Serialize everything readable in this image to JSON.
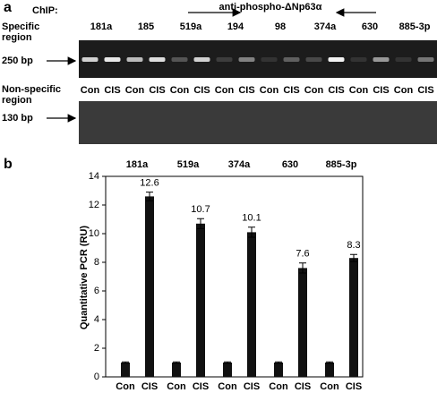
{
  "panel_a": {
    "panel_label": "a",
    "chip_label": "ChIP:",
    "antibody": "anti-phospho-ΔNp63α",
    "specific_label": "Specific region",
    "specific_size": "250 bp",
    "nonspecific_label": "Non-specific region",
    "nonspecific_size": "130 bp",
    "genes": [
      "181a",
      "185",
      "519a",
      "194",
      "98",
      "374a",
      "630",
      "885-3p"
    ],
    "lanes": [
      "Con",
      "CIS",
      "Con",
      "CIS",
      "Con",
      "CIS",
      "Con",
      "CIS",
      "Con",
      "CIS",
      "Con",
      "CIS",
      "Con",
      "CIS",
      "Con",
      "CIS"
    ]
  },
  "chart_data": {
    "type": "bar",
    "panel_label": "b",
    "y_label": "Quantitative PCR (RU)",
    "categories": [
      "181a",
      "519a",
      "374a",
      "630",
      "885-3p"
    ],
    "series": [
      {
        "name": "Con",
        "color": "#111111",
        "values": [
          1,
          1,
          1,
          1,
          1
        ],
        "errors": [
          0.05,
          0.05,
          0.05,
          0.05,
          0.05
        ],
        "data_labels": false
      },
      {
        "name": "CIS",
        "color": "#111111",
        "values": [
          12.6,
          10.7,
          10.1,
          7.6,
          8.3
        ],
        "errors": [
          0.3,
          0.35,
          0.35,
          0.35,
          0.25
        ],
        "data_labels": true
      }
    ],
    "ylim": [
      0,
      14
    ],
    "yticks": [
      0,
      2,
      4,
      6,
      8,
      10,
      12,
      14
    ]
  }
}
